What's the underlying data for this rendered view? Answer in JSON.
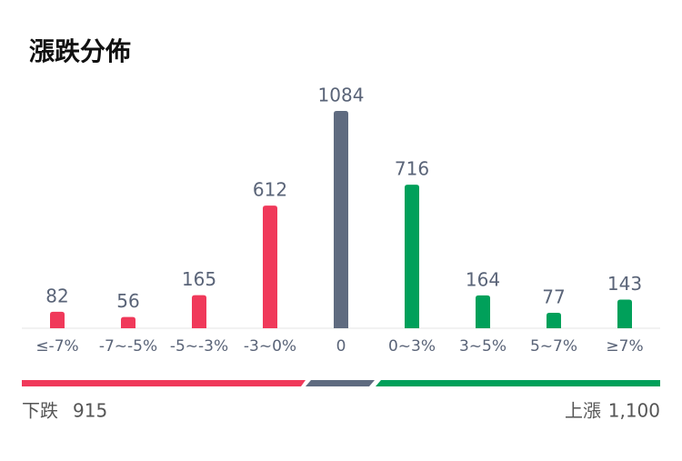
{
  "chart_data": {
    "type": "bar",
    "title": "漲跌分佈",
    "categories": [
      "≤-7%",
      "-7~-5%",
      "-5~-3%",
      "-3~0%",
      "0",
      "0~3%",
      "3~5%",
      "5~7%",
      "≥7%"
    ],
    "values": [
      82,
      56,
      165,
      612,
      1084,
      716,
      164,
      77,
      143
    ],
    "colors": [
      "#f0395a",
      "#f0395a",
      "#f0395a",
      "#f0395a",
      "#5f6b80",
      "#00a05a",
      "#00a05a",
      "#00a05a",
      "#00a05a"
    ]
  },
  "summary": {
    "down": {
      "label": "下跌",
      "value": "915"
    },
    "up": {
      "label": "上漲",
      "value": "1,100"
    }
  }
}
